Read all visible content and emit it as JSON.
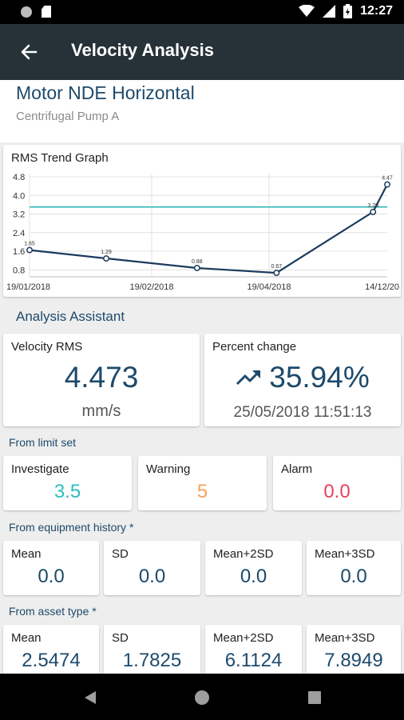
{
  "status_bar": {
    "time": "12:27"
  },
  "app_bar": {
    "title": "Velocity Analysis"
  },
  "asset": {
    "title": "Motor NDE Horizontal",
    "subtitle": "Centrifugal Pump A"
  },
  "chart_data": {
    "type": "line",
    "title": "RMS Trend Graph",
    "y_ticks": [
      "4.8",
      "4.0",
      "3.2",
      "2.4",
      "1.6",
      "0.8"
    ],
    "ylim": [
      0.5,
      4.8
    ],
    "x_tick_labels": [
      "19/01/2018",
      "19/02/2018",
      "19/04/2018",
      "14/12/20"
    ],
    "series": [
      {
        "color": "#1c3b5e",
        "points": [
          {
            "x": "19/01/2018",
            "y": 1.65,
            "label": "1.65"
          },
          {
            "x": "15/02/2018",
            "y": 1.29,
            "label": "1.29"
          },
          {
            "x": "19/03/2018",
            "y": 0.88,
            "label": "0.88"
          },
          {
            "x": "16/04/2018",
            "y": 0.67,
            "label": "0.67"
          },
          {
            "x": "20/05/2018",
            "y": 3.29,
            "label": "3.29"
          },
          {
            "x": "25/05/2018",
            "y": 4.47,
            "label": "4.47"
          }
        ]
      }
    ],
    "reference_line": {
      "y": 3.5,
      "color": "#26b5b5"
    },
    "grid": true
  },
  "assistant": {
    "heading": "Analysis Assistant",
    "velocity": {
      "label": "Velocity RMS",
      "value": "4.473",
      "unit": "mm/s"
    },
    "percent": {
      "label": "Percent change",
      "value": "35.94%",
      "timestamp": "25/05/2018 11:51:13",
      "icon": "trending-up-icon"
    }
  },
  "limit_set": {
    "heading": "From limit set",
    "items": [
      {
        "label": "Investigate",
        "value": "3.5",
        "color": "#2bbcc4"
      },
      {
        "label": "Warning",
        "value": "5",
        "color": "#f5a25d"
      },
      {
        "label": "Alarm",
        "value": "0.0",
        "color": "#e8425a"
      }
    ]
  },
  "equipment_history": {
    "heading": "From equipment history *",
    "items": [
      {
        "label": "Mean",
        "value": "0.0"
      },
      {
        "label": "SD",
        "value": "0.0"
      },
      {
        "label": "Mean+2SD",
        "value": "0.0"
      },
      {
        "label": "Mean+3SD",
        "value": "0.0"
      }
    ]
  },
  "asset_type": {
    "heading": "From asset type *",
    "items": [
      {
        "label": "Mean",
        "value": "2.5474"
      },
      {
        "label": "SD",
        "value": "1.7825"
      },
      {
        "label": "Mean+2SD",
        "value": "6.1124"
      },
      {
        "label": "Mean+3SD",
        "value": "7.8949"
      }
    ]
  },
  "colors": {
    "primary": "#1d4a6b",
    "app_bar": "#263238"
  }
}
